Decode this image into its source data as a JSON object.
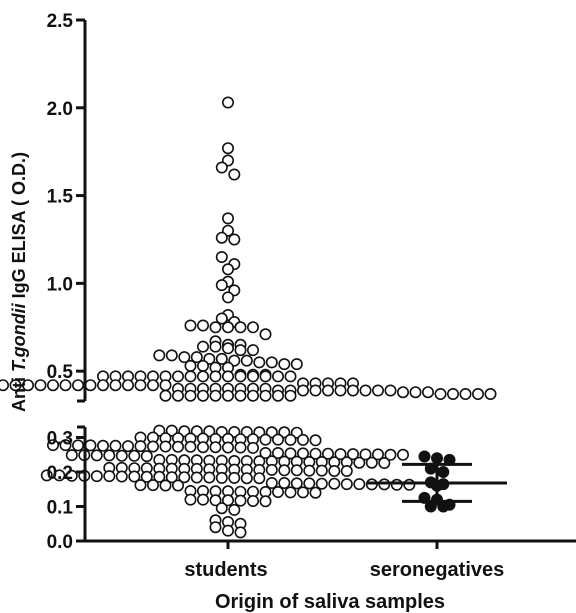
{
  "chart_data": {
    "type": "scatter",
    "title": "",
    "xlabel": "Origin of saliva samples",
    "ylabel_prefix": "Anti ",
    "ylabel_italic": "T.gondii",
    "ylabel_suffix": " IgG ELISA ( O.D.)",
    "categories": [
      "students",
      "seronegatives"
    ],
    "y_axis_lower": {
      "range": [
        0.0,
        0.33
      ],
      "ticks": [
        "0.0",
        "0.1",
        "0.2",
        "0.3"
      ]
    },
    "y_axis_upper": {
      "range": [
        0.33,
        2.5
      ],
      "ticks": [
        "0.5",
        "1.0",
        "1.5",
        "2.0",
        "2.5"
      ]
    },
    "y_axis_broken": true,
    "series": [
      {
        "category": "students",
        "marker": "open-circle",
        "values": [
          2.03,
          1.77,
          1.7,
          1.66,
          1.62,
          1.37,
          1.3,
          1.26,
          1.25,
          1.15,
          1.11,
          1.08,
          1.01,
          0.99,
          0.96,
          0.92,
          0.82,
          0.8,
          0.78,
          0.76,
          0.76,
          0.75,
          0.75,
          0.75,
          0.75,
          0.71,
          0.67,
          0.65,
          0.65,
          0.64,
          0.64,
          0.63,
          0.62,
          0.62,
          0.59,
          0.59,
          0.58,
          0.58,
          0.57,
          0.57,
          0.56,
          0.56,
          0.55,
          0.55,
          0.54,
          0.54,
          0.53,
          0.53,
          0.52,
          0.52,
          0.48,
          0.48,
          0.48,
          0.47,
          0.47,
          0.47,
          0.47,
          0.47,
          0.47,
          0.47,
          0.47,
          0.47,
          0.47,
          0.47,
          0.47,
          0.47,
          0.47,
          0.47,
          0.47,
          0.43,
          0.43,
          0.43,
          0.43,
          0.43,
          0.42,
          0.42,
          0.42,
          0.42,
          0.42,
          0.42,
          0.42,
          0.42,
          0.42,
          0.42,
          0.42,
          0.42,
          0.42,
          0.42,
          0.42,
          0.42,
          0.42,
          0.4,
          0.4,
          0.4,
          0.4,
          0.4,
          0.4,
          0.4,
          0.4,
          0.39,
          0.39,
          0.39,
          0.39,
          0.39,
          0.39,
          0.39,
          0.39,
          0.39,
          0.39,
          0.38,
          0.38,
          0.38,
          0.37,
          0.37,
          0.37,
          0.37,
          0.37,
          0.36,
          0.36,
          0.36,
          0.36,
          0.36,
          0.36,
          0.36,
          0.36,
          0.36,
          0.36,
          0.36,
          0.32,
          0.32,
          0.318,
          0.318,
          0.318,
          0.316,
          0.316,
          0.316,
          0.315,
          0.315,
          0.315,
          0.314,
          0.3,
          0.3,
          0.298,
          0.298,
          0.297,
          0.297,
          0.296,
          0.296,
          0.295,
          0.295,
          0.294,
          0.294,
          0.293,
          0.293,
          0.292,
          0.278,
          0.278,
          0.277,
          0.277,
          0.276,
          0.276,
          0.275,
          0.275,
          0.274,
          0.274,
          0.273,
          0.273,
          0.272,
          0.272,
          0.271,
          0.271,
          0.27,
          0.255,
          0.255,
          0.254,
          0.254,
          0.253,
          0.253,
          0.252,
          0.252,
          0.251,
          0.251,
          0.25,
          0.25,
          0.249,
          0.249,
          0.248,
          0.248,
          0.247,
          0.247,
          0.246,
          0.235,
          0.235,
          0.234,
          0.234,
          0.233,
          0.233,
          0.232,
          0.232,
          0.231,
          0.231,
          0.23,
          0.23,
          0.229,
          0.229,
          0.228,
          0.228,
          0.227,
          0.227,
          0.226,
          0.212,
          0.212,
          0.211,
          0.211,
          0.21,
          0.21,
          0.209,
          0.209,
          0.208,
          0.208,
          0.207,
          0.207,
          0.206,
          0.206,
          0.205,
          0.205,
          0.204,
          0.204,
          0.203,
          0.203,
          0.19,
          0.19,
          0.189,
          0.189,
          0.188,
          0.188,
          0.187,
          0.187,
          0.186,
          0.186,
          0.185,
          0.185,
          0.184,
          0.184,
          0.183,
          0.183,
          0.182,
          0.182,
          0.168,
          0.168,
          0.167,
          0.167,
          0.166,
          0.166,
          0.165,
          0.165,
          0.164,
          0.164,
          0.163,
          0.163,
          0.162,
          0.162,
          0.161,
          0.161,
          0.145,
          0.145,
          0.144,
          0.144,
          0.143,
          0.143,
          0.142,
          0.142,
          0.141,
          0.141,
          0.14,
          0.12,
          0.12,
          0.118,
          0.118,
          0.117,
          0.116,
          0.115,
          0.095,
          0.09,
          0.06,
          0.055,
          0.05,
          0.04,
          0.03,
          0.025
        ]
      },
      {
        "category": "seronegatives",
        "marker": "filled-circle",
        "values": [
          0.245,
          0.24,
          0.235,
          0.21,
          0.2,
          0.17,
          0.165,
          0.16,
          0.125,
          0.12,
          0.105,
          0.1,
          0.1
        ],
        "summary": {
          "center": 0.168,
          "upper": 0.222,
          "lower": 0.115
        }
      }
    ],
    "colors": {
      "axis": "#111111",
      "marker_stroke": "#111111",
      "open_fill": "#ffffff",
      "filled_fill": "#111111"
    },
    "grid": false
  }
}
